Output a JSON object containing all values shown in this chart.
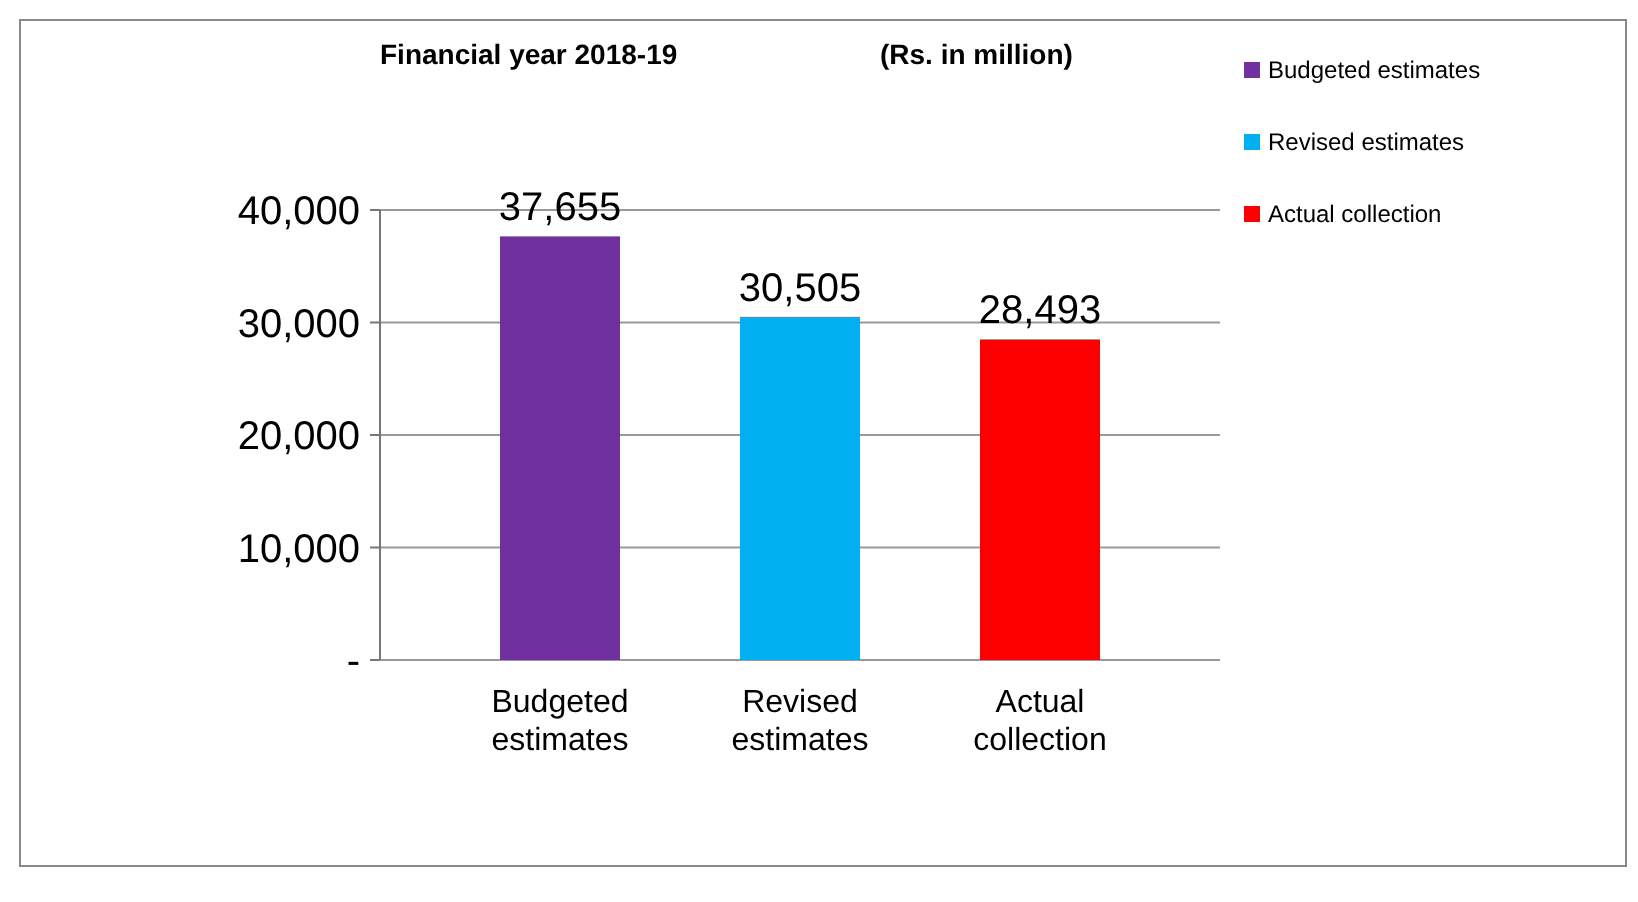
{
  "chart_data": {
    "type": "bar",
    "title": "Financial year 2018-19",
    "subtitle": "(Rs. in million)",
    "categories": [
      "Budgeted estimates",
      "Revised estimates",
      "Actual collection"
    ],
    "series": [
      {
        "name": "Budgeted estimates",
        "color": "#7030a0",
        "values": [
          37655,
          null,
          null
        ],
        "value_labels": [
          "37,655",
          null,
          null
        ]
      },
      {
        "name": "Revised estimates",
        "color": "#00b0f0",
        "values": [
          null,
          30505,
          null
        ],
        "value_labels": [
          null,
          "30,505",
          null
        ]
      },
      {
        "name": "Actual collection",
        "color": "#ff0000",
        "values": [
          null,
          null,
          28493
        ],
        "value_labels": [
          null,
          null,
          "28,493"
        ]
      }
    ],
    "ylim": [
      0,
      40000
    ],
    "yticks": [
      {
        "value": 0,
        "label": "-"
      },
      {
        "value": 10000,
        "label": "10,000"
      },
      {
        "value": 20000,
        "label": "20,000"
      },
      {
        "value": 30000,
        "label": "30,000"
      },
      {
        "value": 40000,
        "label": "40,000"
      }
    ],
    "grid": "y",
    "legend": "right"
  }
}
